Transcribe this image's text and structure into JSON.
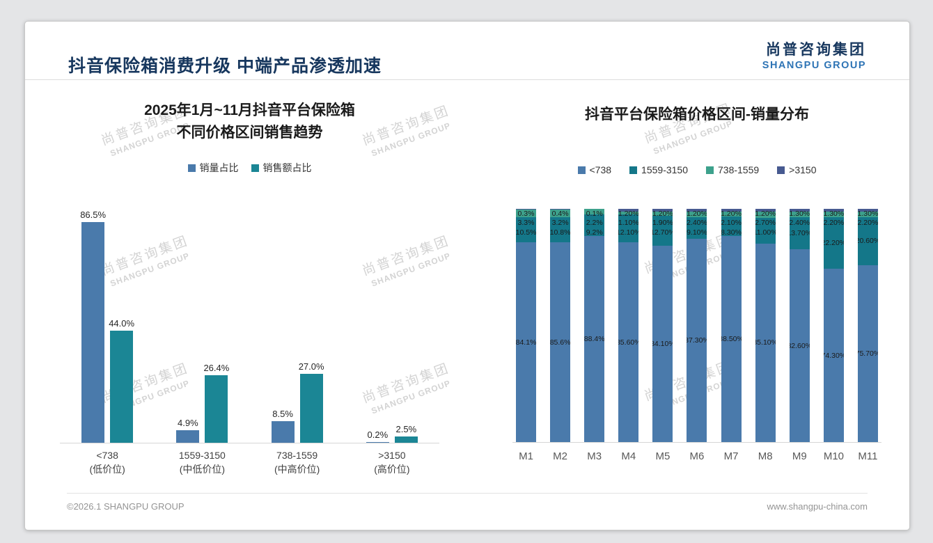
{
  "page": {
    "title": "抖音保险箱消费升级 中端产品渗透加速",
    "logo": {
      "cn": "尚普咨询集团",
      "en": "SHANGPU GROUP"
    },
    "watermark": {
      "line1": "尚普咨询集团",
      "line2": "SHANGPU GROUP"
    },
    "footer": {
      "left": "©2026.1 SHANGPU GROUP",
      "right": "www.shangpu-china.com"
    }
  },
  "chart_data": [
    {
      "type": "bar",
      "variant": "grouped",
      "title_lines": [
        "2025年1月~11月抖音平台保险箱",
        "不同价格区间销售趋势"
      ],
      "categories": [
        "<738",
        "1559-3150",
        "738-1559",
        ">3150"
      ],
      "category_sublabels": [
        "(低价位)",
        "(中低价位)",
        "(中高价位)",
        "(高价位)"
      ],
      "series": [
        {
          "name": "销量占比",
          "color": "#4a7aab",
          "values": [
            86.5,
            4.9,
            8.5,
            0.2
          ],
          "labels": [
            "86.5%",
            "4.9%",
            "8.5%",
            "0.2%"
          ]
        },
        {
          "name": "销售额占比",
          "color": "#1b8695",
          "values": [
            44.0,
            26.4,
            27.0,
            2.5
          ],
          "labels": [
            "44.0%",
            "26.4%",
            "27.0%",
            "2.5%"
          ]
        }
      ],
      "unit": "%",
      "ylim": [
        0,
        95
      ],
      "grid": false,
      "legend_position": "top"
    },
    {
      "type": "bar",
      "variant": "stacked-100",
      "title": "抖音平台保险箱价格区间-销量分布",
      "categories": [
        "M1",
        "M2",
        "M3",
        "M4",
        "M5",
        "M6",
        "M7",
        "M8",
        "M9",
        "M10",
        "M11"
      ],
      "series": [
        {
          "name": "<738",
          "color": "#4a7aab",
          "values": [
            84.1,
            85.6,
            88.4,
            85.6,
            84.1,
            87.3,
            88.5,
            85.1,
            82.6,
            74.3,
            75.7
          ],
          "labels": [
            "84.1%",
            "85.6%",
            "88.4%",
            "85.60%",
            "84.10%",
            "87.30%",
            "88.50%",
            "85.10%",
            "82.60%",
            "74.30%",
            "75.70%"
          ]
        },
        {
          "name": "1559-3150",
          "color": "#147789",
          "values": [
            10.5,
            10.8,
            9.2,
            12.1,
            12.7,
            9.1,
            8.3,
            11.0,
            13.7,
            22.2,
            20.6
          ],
          "labels": [
            "10.5%",
            "10.8%",
            "9.2%",
            "12.10%",
            "12.70%",
            "9.10%",
            "8.30%",
            "11.00%",
            "13.70%",
            "22.20%",
            "20.60%"
          ]
        },
        {
          "name": "738-1559",
          "color": "#3da18c",
          "values": [
            3.3,
            3.2,
            2.2,
            1.1,
            1.9,
            2.4,
            2.1,
            2.7,
            2.4,
            2.2,
            2.2
          ],
          "labels": [
            "3.3%",
            "3.2%",
            "2.2%",
            "1.10%",
            "1.90%",
            "2.40%",
            "2.10%",
            "2.70%",
            "2.40%",
            "2.20%",
            "2.20%"
          ]
        },
        {
          "name": ">3150",
          "color": "#475a90",
          "values": [
            0.3,
            0.4,
            0.1,
            1.2,
            1.2,
            1.2,
            1.2,
            1.2,
            1.3,
            1.3,
            1.3
          ],
          "labels": [
            "0.3%",
            "0.4%",
            "0.1%",
            "1.20%",
            "1.20%",
            "1.20%",
            "1.20%",
            "1.20%",
            "1.30%",
            "1.30%",
            "1.30%"
          ]
        }
      ],
      "unit": "%",
      "ylim": [
        0,
        100
      ],
      "grid": false,
      "legend_position": "top"
    }
  ]
}
